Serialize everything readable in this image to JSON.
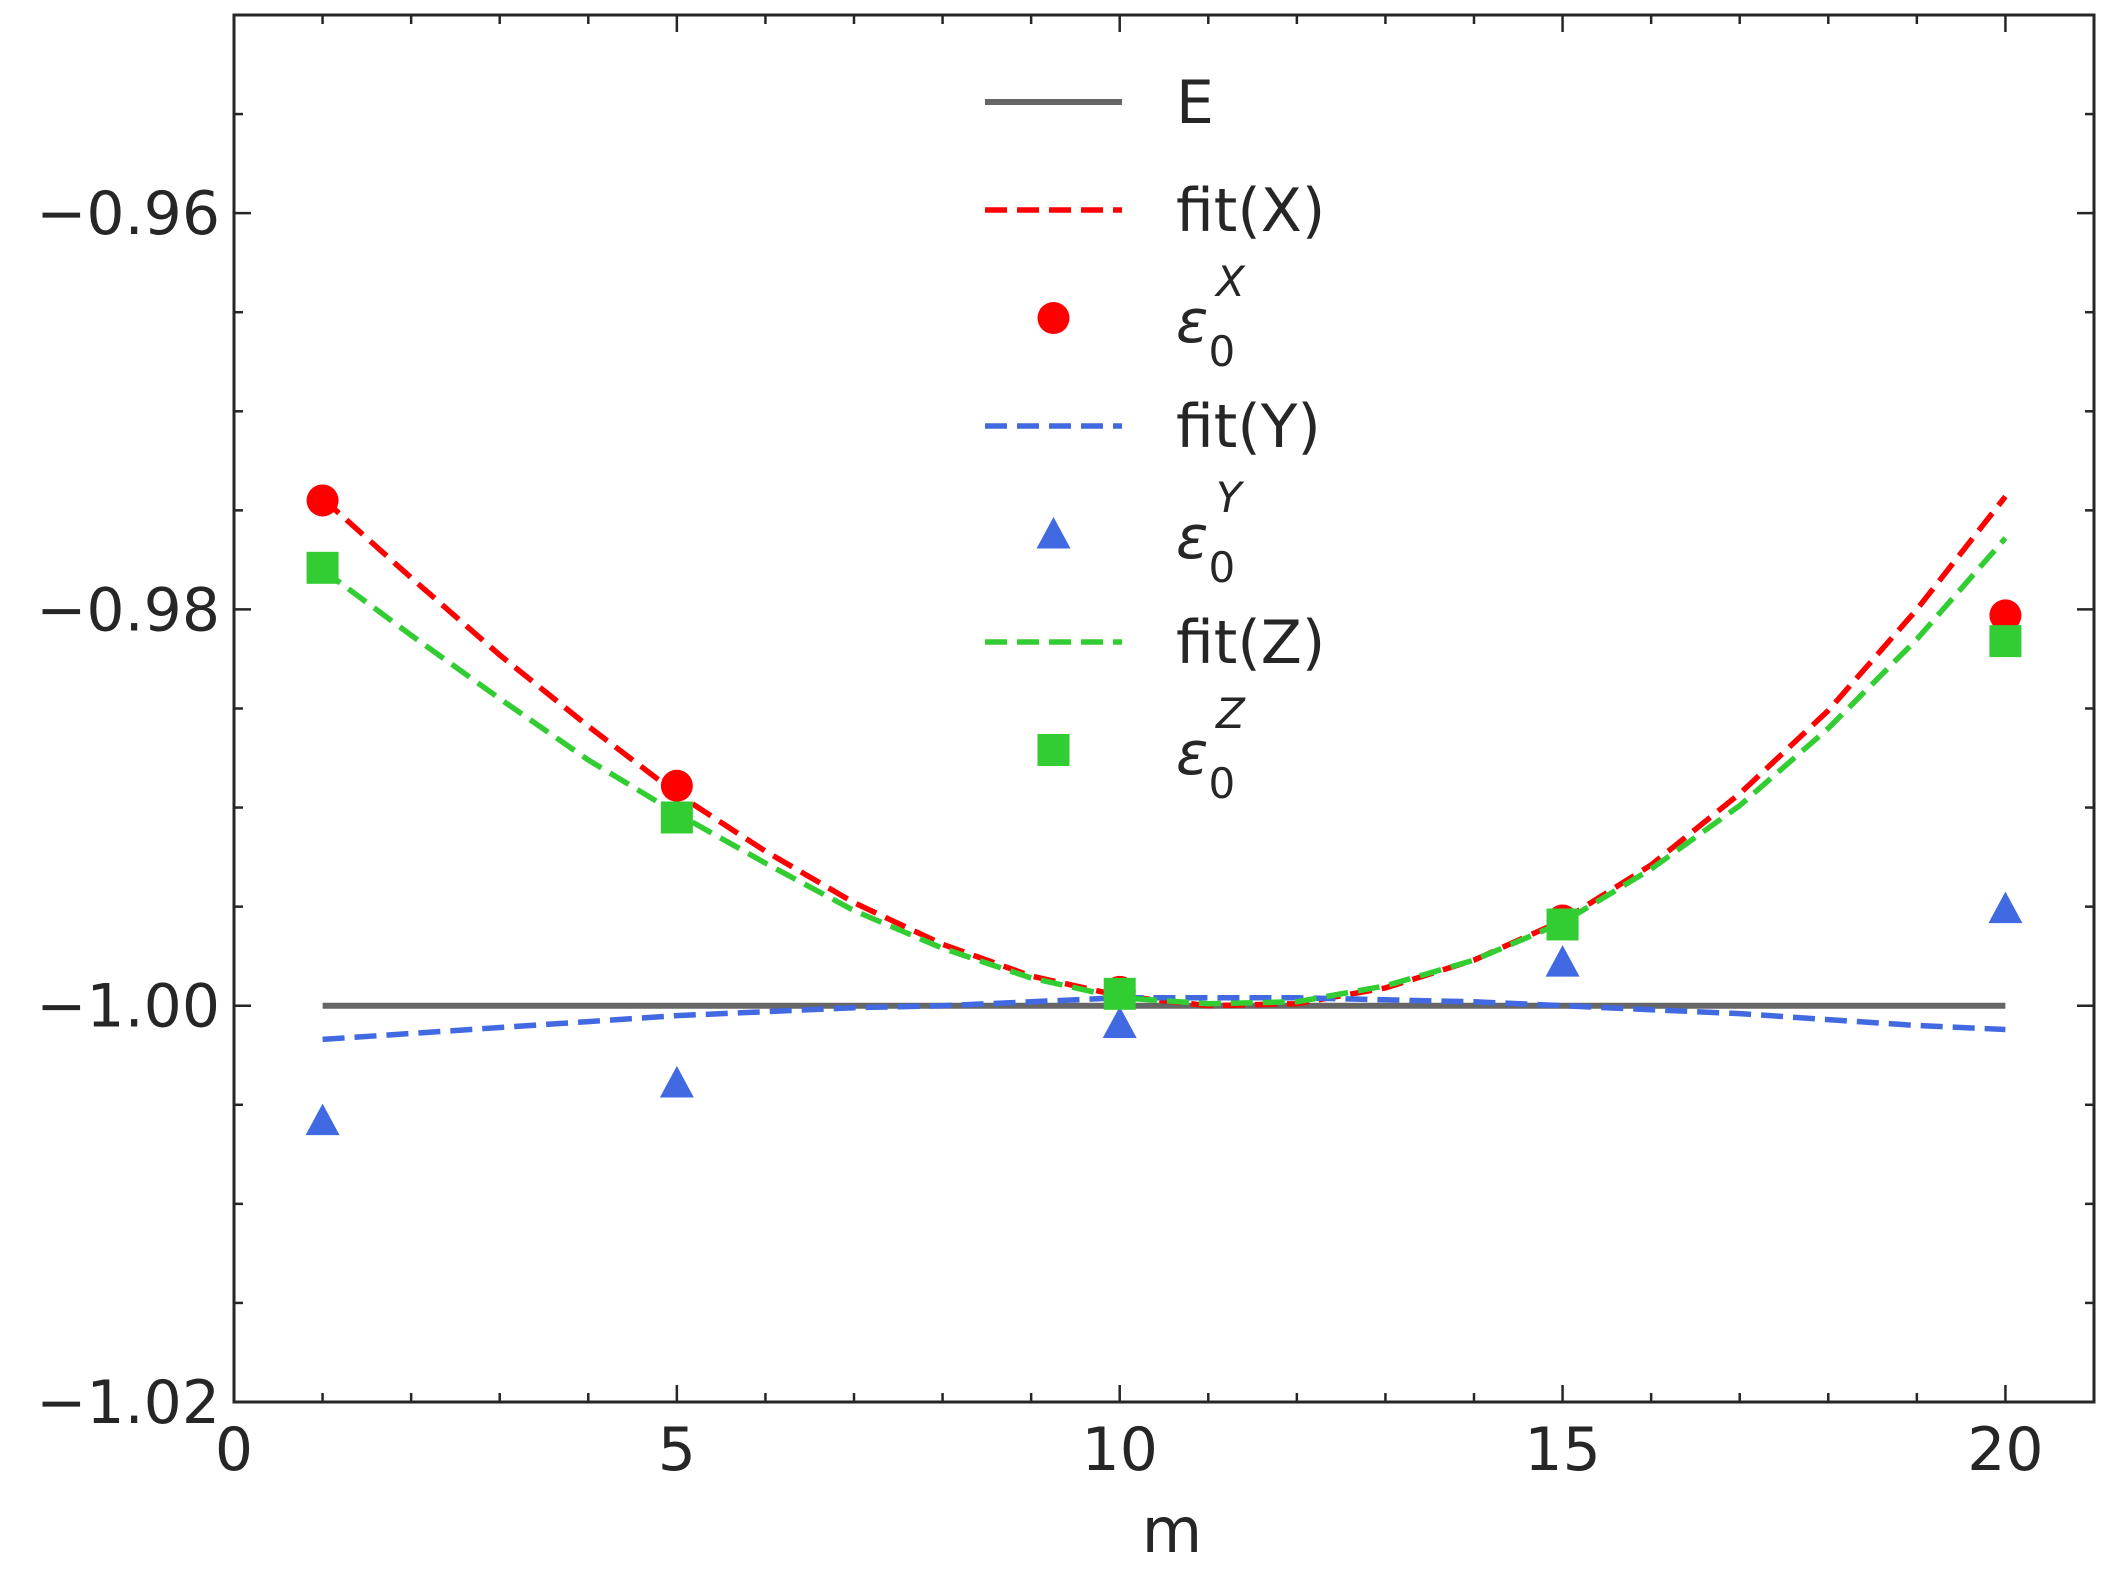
{
  "chart_data": {
    "type": "line",
    "title": "",
    "xlabel": "m",
    "ylabel": "",
    "xlim": [
      0,
      21
    ],
    "ylim": [
      -1.02,
      -0.95
    ],
    "x_ticks": [
      0,
      5,
      10,
      15,
      20
    ],
    "x_tick_labels": [
      "0",
      "5",
      "10",
      "15",
      "20"
    ],
    "y_ticks": [
      -1.02,
      -1.0,
      -0.98,
      -0.96
    ],
    "y_tick_labels": [
      "−1.02",
      "−1.00",
      "−0.98",
      "−0.96"
    ],
    "grid": false,
    "legend_position": "top-center",
    "series": [
      {
        "name": "E",
        "kind": "line",
        "style": "solid",
        "color": "#666666",
        "x": [
          1,
          20
        ],
        "y": [
          -1.0,
          -1.0
        ]
      },
      {
        "name": "fit(X)",
        "kind": "line",
        "style": "dashed",
        "color": "#ff0000",
        "x": [
          1,
          2,
          3,
          4,
          5,
          6,
          7,
          8,
          9,
          10,
          11,
          12,
          13,
          14,
          15,
          16,
          17,
          18,
          19,
          20
        ],
        "y": [
          -0.9744,
          -0.9784,
          -0.9823,
          -0.9859,
          -0.9893,
          -0.9922,
          -0.9948,
          -0.9969,
          -0.9985,
          -0.9995,
          -1.0,
          -0.9999,
          -0.9991,
          -0.9977,
          -0.9957,
          -0.9929,
          -0.9893,
          -0.9851,
          -0.98,
          -0.9743
        ]
      },
      {
        "name": "ε₀ˣ",
        "legend_base": "ε",
        "legend_sub": "0",
        "legend_sup": "X",
        "kind": "marker",
        "marker": "circle",
        "color": "#ff0000",
        "x": [
          1,
          5,
          10,
          15,
          20
        ],
        "y": [
          -0.9745,
          -0.9889,
          -0.9993,
          -0.9957,
          -0.9803
        ]
      },
      {
        "name": "fit(Y)",
        "kind": "line",
        "style": "dashed",
        "color": "#4169e1",
        "x": [
          1,
          2,
          3,
          4,
          5,
          6,
          7,
          8,
          9,
          10,
          11,
          12,
          13,
          14,
          15,
          16,
          17,
          18,
          19,
          20
        ],
        "y": [
          -1.0017,
          -1.0014,
          -1.0011,
          -1.0008,
          -1.0005,
          -1.0003,
          -1.0001,
          -1.0,
          -0.9998,
          -0.9996,
          -0.9996,
          -0.9996,
          -0.9997,
          -0.9998,
          -1.0,
          -1.0002,
          -1.0004,
          -1.0007,
          -1.001,
          -1.0012
        ]
      },
      {
        "name": "ε₀ʸ",
        "legend_base": "ε",
        "legend_sub": "0",
        "legend_sup": "Y",
        "kind": "marker",
        "marker": "triangle",
        "color": "#4169e1",
        "x": [
          1,
          5,
          10,
          15,
          20
        ],
        "y": [
          -1.0058,
          -1.0039,
          -1.0009,
          -0.9978,
          -0.9951
        ]
      },
      {
        "name": "fit(Z)",
        "kind": "line",
        "style": "dashed",
        "color": "#32cd32",
        "x": [
          1,
          2,
          3,
          4,
          5,
          6,
          7,
          8,
          9,
          10,
          11,
          12,
          13,
          14,
          15,
          16,
          17,
          18,
          19,
          20
        ],
        "y": [
          -0.978,
          -0.9813,
          -0.9845,
          -0.9876,
          -0.9903,
          -0.9928,
          -0.9952,
          -0.9971,
          -0.9986,
          -0.9996,
          -0.9999,
          -0.9998,
          -0.999,
          -0.9977,
          -0.9958,
          -0.9931,
          -0.9899,
          -0.986,
          -0.9815,
          -0.9764
        ]
      },
      {
        "name": "ε₀ᶻ",
        "legend_base": "ε",
        "legend_sub": "0",
        "legend_sup": "Z",
        "kind": "marker",
        "marker": "square",
        "color": "#32cd32",
        "x": [
          1,
          5,
          10,
          15,
          20
        ],
        "y": [
          -0.9779,
          -0.9905,
          -0.9994,
          -0.9959,
          -0.9816
        ]
      }
    ]
  }
}
